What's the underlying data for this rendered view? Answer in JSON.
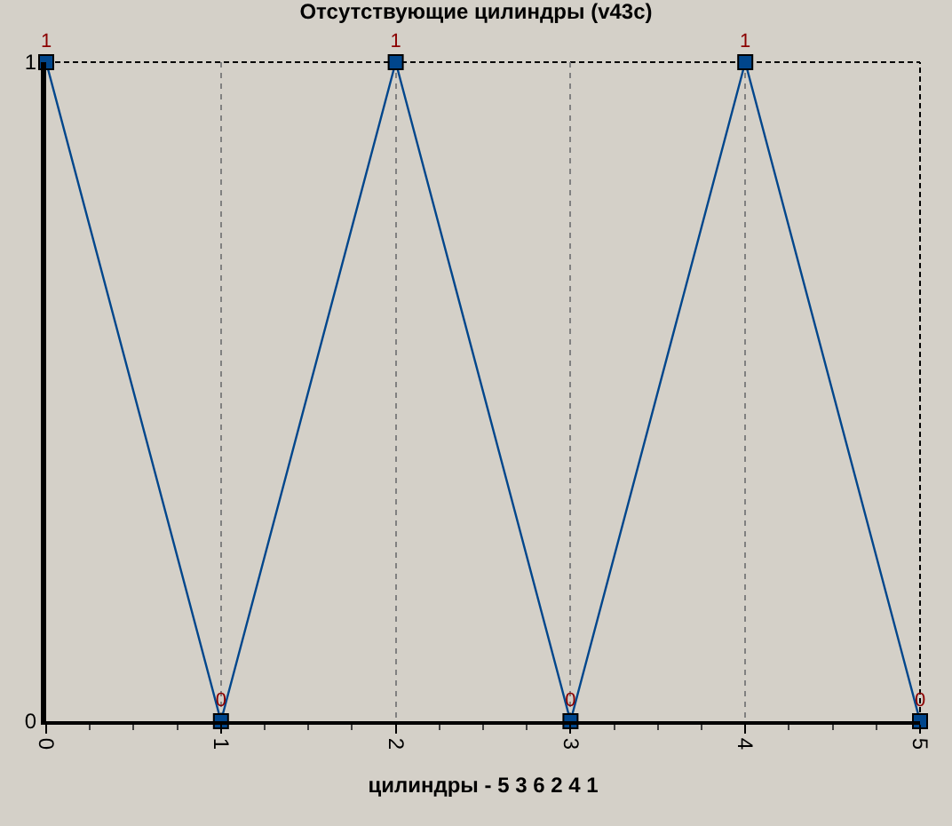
{
  "chart_data": {
    "type": "line",
    "title": "Отсутствующие цилиндры (v43c)",
    "xlabel": "цилиндры - 5 3 6 2 4 1",
    "x": [
      0,
      1,
      2,
      3,
      4,
      5
    ],
    "series": [
      {
        "color": "#00468c",
        "values": [
          1,
          0,
          1,
          0,
          1,
          0
        ]
      }
    ],
    "xlim": [
      0,
      5
    ],
    "xticks": [
      0,
      1,
      2,
      3,
      4,
      5
    ],
    "ylim": [
      0,
      1
    ],
    "yticks": [
      0,
      1
    ],
    "grid": "x",
    "marker": "square",
    "line_style": "solid",
    "data_labels": true
  }
}
